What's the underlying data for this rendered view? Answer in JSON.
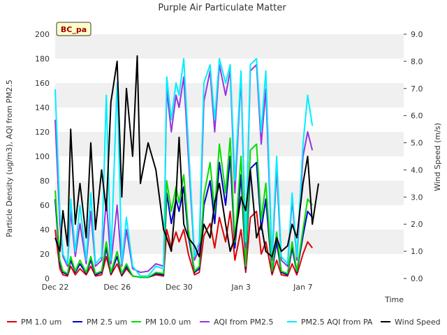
{
  "chart_data": {
    "type": "line",
    "title": "Purple Air Particulate Matter",
    "site_label": "BC_pa",
    "xlabel": "Time",
    "ylabel_left": "Particle Density (ug/m3), AQI from PM2.5",
    "ylabel_right": "Wind Speed (m/s)",
    "x_unit": "days since Dec 22",
    "xlim": [
      0,
      22.5
    ],
    "ylim_left": [
      0,
      200
    ],
    "ylim_right": [
      0,
      9
    ],
    "x_ticks": [
      {
        "value": 0,
        "label": "Dec 22"
      },
      {
        "value": 4,
        "label": "Dec 26"
      },
      {
        "value": 8,
        "label": "Dec 30"
      },
      {
        "value": 12,
        "label": "Jan 3"
      },
      {
        "value": 16,
        "label": "Jan 7"
      }
    ],
    "y_ticks_left": [
      "0",
      "20",
      "40",
      "60",
      "80",
      "100",
      "120",
      "140",
      "160",
      "180",
      "200"
    ],
    "y_ticks_right": [
      "0.0",
      "1.0",
      "2.0",
      "3.0",
      "4.0",
      "5.0",
      "6.0",
      "7.0",
      "8.0",
      "9.0"
    ],
    "grid": "horizontal bands",
    "legend_position": "bottom",
    "series": [
      {
        "name": "PM 1.0 um",
        "color": "#dd0000",
        "axis": "left",
        "x": [
          0,
          0.3,
          0.5,
          0.8,
          1,
          1.3,
          1.6,
          2,
          2.3,
          2.6,
          3,
          3.3,
          3.6,
          4,
          4.3,
          4.6,
          5,
          5.5,
          6,
          6.5,
          7,
          7.2,
          7.5,
          7.8,
          8,
          8.3,
          8.6,
          9,
          9.3,
          9.6,
          10,
          10.3,
          10.6,
          11,
          11.3,
          11.6,
          12,
          12.3,
          12.6,
          13,
          13.3,
          13.6,
          14,
          14.3,
          14.6,
          15,
          15.3,
          15.6,
          16,
          16.3,
          16.6
        ],
        "y": [
          40,
          8,
          3,
          2,
          10,
          3,
          8,
          3,
          10,
          2,
          3,
          18,
          3,
          12,
          2,
          8,
          2,
          1,
          1,
          3,
          2,
          40,
          25,
          38,
          30,
          40,
          20,
          3,
          5,
          35,
          45,
          25,
          50,
          30,
          55,
          15,
          40,
          5,
          50,
          55,
          20,
          30,
          3,
          15,
          3,
          2,
          12,
          3,
          20,
          30,
          25
        ]
      },
      {
        "name": "PM 2.5 um",
        "color": "#0000cc",
        "axis": "left",
        "x": [
          0,
          0.3,
          0.5,
          0.8,
          1,
          1.3,
          1.6,
          2,
          2.3,
          2.6,
          3,
          3.3,
          3.6,
          4,
          4.3,
          4.6,
          5,
          5.5,
          6,
          6.5,
          7,
          7.2,
          7.5,
          7.8,
          8,
          8.3,
          8.6,
          9,
          9.3,
          9.6,
          10,
          10.3,
          10.6,
          11,
          11.3,
          11.6,
          12,
          12.3,
          12.6,
          13,
          13.3,
          13.6,
          14,
          14.3,
          14.6,
          15,
          15.3,
          15.6,
          16,
          16.3,
          16.6
        ],
        "y": [
          65,
          12,
          5,
          3,
          15,
          5,
          12,
          4,
          15,
          3,
          5,
          25,
          4,
          18,
          3,
          10,
          2,
          1,
          1,
          4,
          3,
          70,
          45,
          65,
          55,
          75,
          35,
          5,
          8,
          60,
          80,
          45,
          95,
          60,
          100,
          25,
          85,
          8,
          90,
          95,
          40,
          65,
          5,
          30,
          5,
          3,
          25,
          5,
          35,
          55,
          50
        ]
      },
      {
        "name": "PM 10.0 um",
        "color": "#00dd00",
        "axis": "left",
        "x": [
          0,
          0.3,
          0.5,
          0.8,
          1,
          1.3,
          1.6,
          2,
          2.3,
          2.6,
          3,
          3.3,
          3.6,
          4,
          4.3,
          4.6,
          5,
          5.5,
          6,
          6.5,
          7,
          7.2,
          7.5,
          7.8,
          8,
          8.3,
          8.6,
          9,
          9.3,
          9.6,
          10,
          10.3,
          10.6,
          11,
          11.3,
          11.6,
          12,
          12.3,
          12.6,
          13,
          13.3,
          13.6,
          14,
          14.3,
          14.6,
          15,
          15.3,
          15.6,
          16,
          16.3,
          16.6
        ],
        "y": [
          72,
          15,
          6,
          4,
          18,
          6,
          15,
          5,
          18,
          4,
          6,
          30,
          5,
          22,
          4,
          12,
          2,
          1,
          1,
          5,
          4,
          80,
          55,
          75,
          62,
          85,
          40,
          6,
          10,
          68,
          95,
          55,
          110,
          70,
          115,
          30,
          100,
          10,
          105,
          110,
          48,
          78,
          6,
          38,
          6,
          4,
          30,
          6,
          40,
          65,
          60
        ]
      },
      {
        "name": "AQI from PM2.5",
        "color": "#9933dd",
        "axis": "left",
        "x": [
          0,
          0.3,
          0.5,
          0.8,
          1,
          1.3,
          1.6,
          2,
          2.3,
          2.6,
          3,
          3.3,
          3.6,
          4,
          4.3,
          4.6,
          5,
          5.5,
          6,
          6.5,
          7,
          7.2,
          7.5,
          7.8,
          8,
          8.3,
          8.6,
          9,
          9.3,
          9.6,
          10,
          10.3,
          10.6,
          11,
          11.3,
          11.6,
          12,
          12.3,
          12.6,
          13,
          13.3,
          13.6,
          14,
          14.3,
          14.6,
          15,
          15.3,
          15.6,
          16,
          16.3,
          16.6
        ],
        "y": [
          130,
          45,
          18,
          10,
          55,
          18,
          45,
          12,
          55,
          10,
          15,
          65,
          12,
          60,
          10,
          40,
          8,
          5,
          6,
          12,
          10,
          155,
          120,
          150,
          140,
          165,
          100,
          15,
          25,
          145,
          170,
          120,
          175,
          150,
          170,
          70,
          165,
          25,
          170,
          175,
          110,
          155,
          15,
          90,
          15,
          10,
          65,
          15,
          100,
          120,
          105
        ]
      },
      {
        "name": "PM2.5 AQI from PA",
        "color": "#00eeff",
        "axis": "left",
        "x": [
          0,
          0.3,
          0.5,
          0.8,
          1,
          1.3,
          1.6,
          2,
          2.3,
          2.6,
          3,
          3.3,
          3.6,
          4,
          4.3,
          4.6,
          5,
          5.5,
          6,
          6.5,
          7,
          7.2,
          7.5,
          7.8,
          8,
          8.3,
          8.6,
          9,
          9.3,
          9.6,
          10,
          10.3,
          10.6,
          11,
          11.3,
          11.6,
          12,
          12.3,
          12.6,
          13,
          13.3,
          13.6,
          14,
          14.3,
          14.6,
          15,
          15.3,
          15.6,
          16,
          16.3,
          16.6
        ],
        "y": [
          155,
          55,
          20,
          12,
          65,
          22,
          60,
          15,
          70,
          12,
          18,
          150,
          15,
          160,
          12,
          50,
          10,
          2,
          2,
          10,
          8,
          165,
          130,
          160,
          150,
          180,
          110,
          18,
          30,
          160,
          175,
          130,
          180,
          160,
          175,
          80,
          170,
          30,
          175,
          180,
          120,
          170,
          18,
          100,
          18,
          12,
          70,
          18,
          110,
          150,
          125
        ]
      },
      {
        "name": "Wind Speed",
        "color": "#000000",
        "axis": "right",
        "x": [
          0,
          0.3,
          0.5,
          0.8,
          1,
          1.3,
          1.6,
          2,
          2.3,
          2.6,
          3,
          3.3,
          3.6,
          4,
          4.3,
          4.6,
          5,
          5.3,
          5.5,
          6,
          6.5,
          7,
          7.2,
          7.5,
          7.8,
          8,
          8.3,
          8.6,
          9,
          9.3,
          9.6,
          10,
          10.3,
          10.6,
          11,
          11.3,
          11.6,
          12,
          12.3,
          12.6,
          13,
          13.3,
          13.6,
          14,
          14.3,
          14.6,
          15,
          15.3,
          15.6,
          16,
          16.3,
          16.6,
          17
        ],
        "y": [
          1.5,
          1.0,
          2.5,
          1.2,
          5.5,
          2.0,
          3.5,
          1.5,
          5.0,
          1.8,
          4.0,
          2.5,
          6.5,
          8.0,
          3.0,
          7.0,
          4.5,
          8.2,
          3.5,
          5.0,
          4.0,
          1.8,
          1.5,
          1.0,
          3.0,
          5.2,
          2.0,
          1.5,
          1.2,
          0.8,
          2.0,
          1.5,
          2.8,
          3.5,
          2.0,
          1.0,
          1.5,
          3.0,
          2.5,
          4.0,
          1.5,
          2.0,
          1.0,
          0.8,
          1.5,
          1.0,
          1.2,
          2.0,
          1.5,
          3.5,
          4.5,
          2.0,
          3.5
        ]
      }
    ]
  }
}
